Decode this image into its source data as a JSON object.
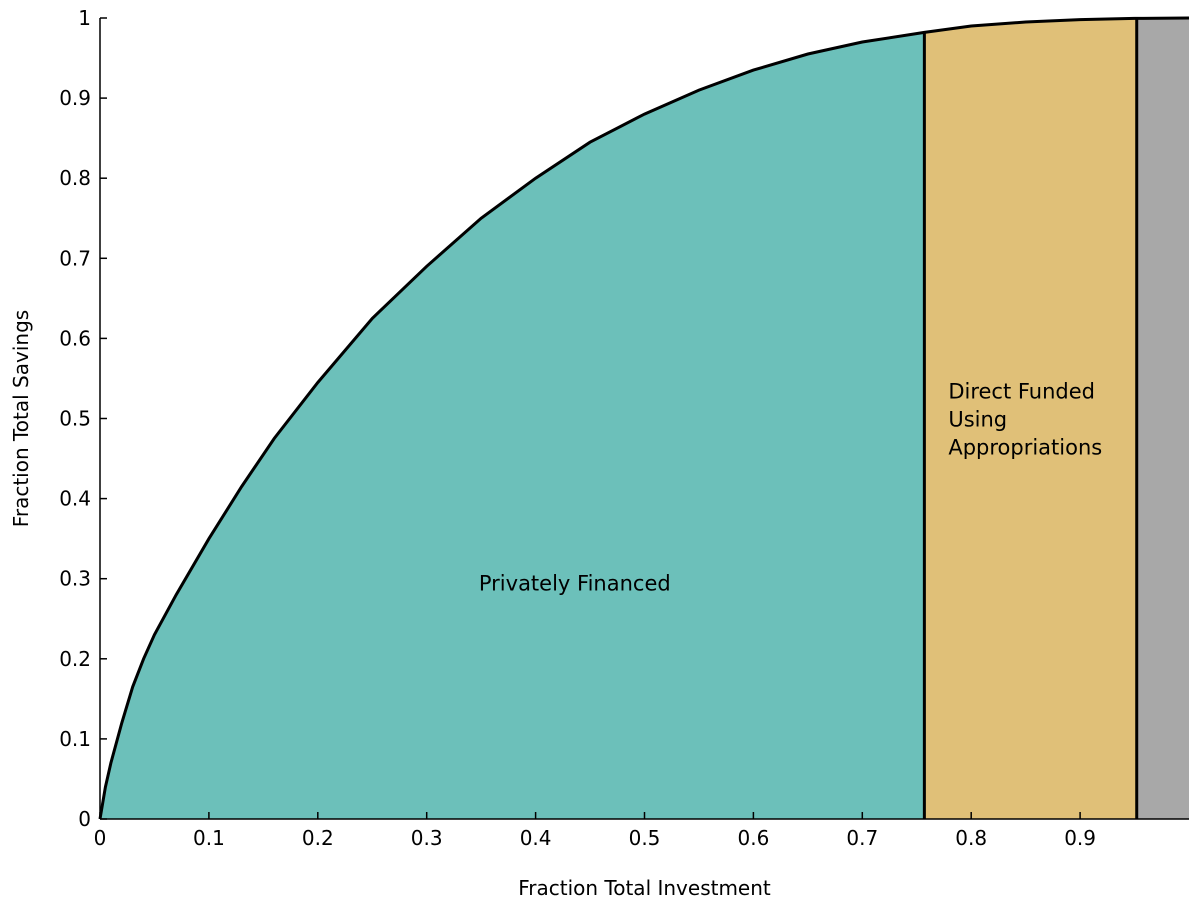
{
  "chart_data": {
    "type": "area",
    "title": "",
    "xlabel": "Fraction Total Investment",
    "ylabel": "Fraction Total Savings",
    "xlim": [
      0,
      1
    ],
    "ylim": [
      0,
      1
    ],
    "x_ticks": [
      "0",
      "0.1",
      "0.2",
      "0.3",
      "0.4",
      "0.5",
      "0.6",
      "0.7",
      "0.8",
      "0.9"
    ],
    "y_ticks": [
      "0",
      "0.1",
      "0.2",
      "0.3",
      "0.4",
      "0.5",
      "0.6",
      "0.7",
      "0.8",
      "0.9",
      "1"
    ],
    "grid": false,
    "curve": {
      "x": [
        0,
        0.005,
        0.01,
        0.02,
        0.03,
        0.04,
        0.05,
        0.07,
        0.1,
        0.13,
        0.16,
        0.2,
        0.25,
        0.3,
        0.35,
        0.4,
        0.45,
        0.5,
        0.55,
        0.6,
        0.65,
        0.7,
        0.757,
        0.8,
        0.85,
        0.9,
        0.95,
        1.0
      ],
      "y": [
        0,
        0.04,
        0.07,
        0.12,
        0.165,
        0.2,
        0.23,
        0.28,
        0.35,
        0.415,
        0.475,
        0.545,
        0.625,
        0.69,
        0.75,
        0.8,
        0.845,
        0.88,
        0.91,
        0.935,
        0.955,
        0.97,
        0.982,
        0.99,
        0.995,
        0.998,
        0.9995,
        1.0
      ]
    },
    "regions": [
      {
        "name": "Privately Financed",
        "x_start": 0,
        "x_end": 0.757,
        "color": "#6cc0ba"
      },
      {
        "name": "Direct Funded Using Appropriations",
        "x_start": 0.757,
        "x_end": 0.952,
        "color": "#e0c078"
      },
      {
        "name": "",
        "x_start": 0.952,
        "x_end": 1.0,
        "color": "#a8a8a8"
      }
    ],
    "annotations": {
      "privately_financed": "Privately Financed",
      "direct_funded_lines": [
        "Direct Funded",
        "Using",
        "Appropriations"
      ]
    }
  }
}
